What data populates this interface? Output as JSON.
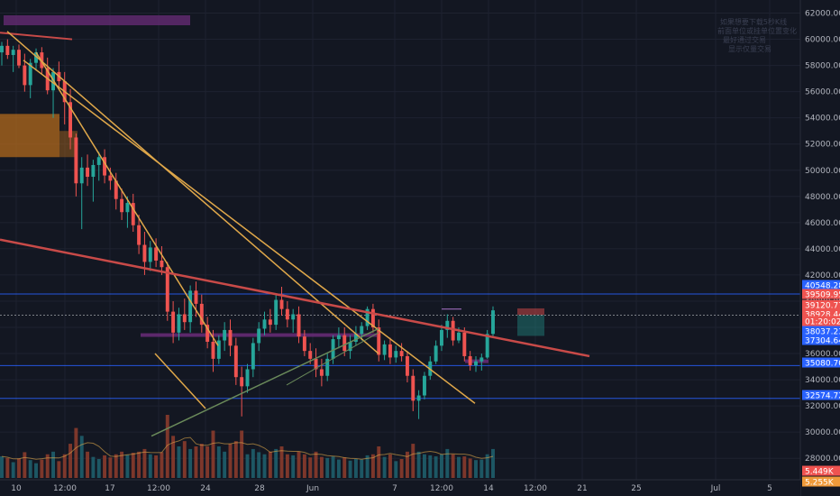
{
  "chart_data": {
    "type": "candlestick",
    "colors": {
      "background": "#131722",
      "grid": "#1e2230",
      "up": "#26a69a",
      "down": "#ef5350",
      "axis_text": "#b2b5be",
      "trendline_yellow": "#e0a84a",
      "trendline_red": "#c84a48",
      "trendline_green": "#6a8a5a",
      "hline_blue": "#2962ff",
      "zone_orange": "#b26a1c",
      "zone_purple": "#6a2c78"
    },
    "y_axis": {
      "min": 26500,
      "max": 63000,
      "ticks": [
        28000,
        30000,
        32000,
        34000,
        36000,
        38000,
        40000,
        42000,
        44000,
        46000,
        48000,
        50000,
        52000,
        54000,
        56000,
        58000,
        60000,
        62000
      ],
      "tick_labels": [
        "28000.00",
        "30000.00",
        "32000.00",
        "34000.00",
        "36000.00",
        "38000.00",
        "40000.00",
        "42000.00",
        "44000.00",
        "46000.00",
        "48000.00",
        "50000.00",
        "52000.00",
        "54000.00",
        "56000.00",
        "58000.00",
        "60000.00",
        "62000.00"
      ]
    },
    "x_axis": {
      "tick_labels": [
        "10",
        "12:00",
        "17",
        "12:00",
        "24",
        "28",
        "Jun",
        "7",
        "12:00",
        "14",
        "12:00",
        "21",
        "25",
        "Jul",
        "5"
      ]
    },
    "horizontal_levels": [
      40548.28,
      38928.44,
      35080.7,
      32574.72
    ],
    "price_labels": [
      {
        "text": "40548.28",
        "color": "#2962ff"
      },
      {
        "text": "39509.95",
        "color": "#ef5350"
      },
      {
        "text": "39120.77",
        "color": "#ef5350"
      },
      {
        "text": "38928.44",
        "color": "#ef5350"
      },
      {
        "text": "01:20:02",
        "color": "#ef5350"
      },
      {
        "text": "38037.23",
        "color": "#2962ff"
      },
      {
        "text": "37304.64",
        "color": "#2962ff"
      },
      {
        "text": "35080.70",
        "color": "#2962ff"
      },
      {
        "text": "32574.72",
        "color": "#2962ff"
      }
    ],
    "volume_labels": [
      {
        "text": "5.449K",
        "color": "#ef5350"
      },
      {
        "text": "5.255K",
        "color": "#ef9a3a"
      }
    ],
    "watermark_lines": [
      "如果想要下载5秒K线",
      "前面单位或挂单位置变化",
      "最好通过交易",
      "显示仅量交易"
    ],
    "ohlc": [
      [
        59000,
        59800,
        58000,
        59500
      ],
      [
        59500,
        60000,
        58500,
        58800
      ],
      [
        58800,
        59500,
        57500,
        59200
      ],
      [
        59200,
        59600,
        57800,
        58000
      ],
      [
        58000,
        58900,
        56000,
        56500
      ],
      [
        56500,
        58500,
        55500,
        58200
      ],
      [
        58200,
        59300,
        57600,
        59000
      ],
      [
        59000,
        59400,
        57300,
        57800
      ],
      [
        57800,
        58600,
        55800,
        56100
      ],
      [
        56100,
        57800,
        54000,
        57500
      ],
      [
        57500,
        58300,
        56200,
        56800
      ],
      [
        56800,
        57500,
        53500,
        55200
      ],
      [
        55200,
        56200,
        51600,
        52500
      ],
      [
        52500,
        52800,
        48000,
        49000
      ],
      [
        49000,
        51000,
        45500,
        50200
      ],
      [
        50200,
        51200,
        48800,
        49500
      ],
      [
        49500,
        50800,
        47600,
        50400
      ],
      [
        50400,
        51400,
        49200,
        51000
      ],
      [
        51000,
        51600,
        49000,
        49600
      ],
      [
        49600,
        50200,
        48500,
        49200
      ],
      [
        49200,
        49800,
        47000,
        47800
      ],
      [
        47800,
        48600,
        46200,
        46800
      ],
      [
        46800,
        48000,
        45600,
        47500
      ],
      [
        47500,
        48200,
        45300,
        45800
      ],
      [
        45800,
        46600,
        43600,
        44300
      ],
      [
        44300,
        45300,
        42000,
        43000
      ],
      [
        43000,
        44600,
        42300,
        44100
      ],
      [
        44100,
        44800,
        42600,
        43100
      ],
      [
        43100,
        44200,
        42000,
        42600
      ],
      [
        42600,
        43000,
        38500,
        39200
      ],
      [
        39200,
        40000,
        36800,
        37600
      ],
      [
        37600,
        39500,
        37000,
        39000
      ],
      [
        39000,
        40200,
        37800,
        38400
      ],
      [
        38400,
        41200,
        37600,
        40800
      ],
      [
        40800,
        41500,
        38800,
        39800
      ],
      [
        39800,
        40500,
        37600,
        38200
      ],
      [
        38200,
        38800,
        36400,
        36900
      ],
      [
        36900,
        37800,
        34600,
        35600
      ],
      [
        35600,
        37400,
        35200,
        37000
      ],
      [
        37000,
        38400,
        36200,
        37800
      ],
      [
        37800,
        38600,
        35800,
        36600
      ],
      [
        36600,
        37200,
        33600,
        34200
      ],
      [
        34200,
        35000,
        31200,
        33500
      ],
      [
        33500,
        35200,
        33000,
        34800
      ],
      [
        34800,
        37200,
        34200,
        36800
      ],
      [
        36800,
        38400,
        36200,
        37900
      ],
      [
        37900,
        39200,
        37400,
        38600
      ],
      [
        38600,
        39400,
        37600,
        38200
      ],
      [
        38200,
        40600,
        37800,
        40100
      ],
      [
        40100,
        41100,
        38900,
        39400
      ],
      [
        39400,
        40000,
        38000,
        38600
      ],
      [
        38600,
        39400,
        37600,
        39000
      ],
      [
        39000,
        39600,
        36800,
        37300
      ],
      [
        37300,
        37800,
        35800,
        36200
      ],
      [
        36200,
        36800,
        35200,
        35600
      ],
      [
        35600,
        36400,
        34200,
        34800
      ],
      [
        34800,
        35600,
        33500,
        34300
      ],
      [
        34300,
        36000,
        33900,
        35600
      ],
      [
        35600,
        37400,
        35200,
        37100
      ],
      [
        37100,
        38000,
        36400,
        37400
      ],
      [
        37400,
        38000,
        35800,
        36200
      ],
      [
        36200,
        37400,
        35600,
        36900
      ],
      [
        36900,
        38100,
        36600,
        37500
      ],
      [
        37500,
        38400,
        37000,
        38100
      ],
      [
        38100,
        39600,
        37800,
        39400
      ],
      [
        39400,
        39800,
        37600,
        38000
      ],
      [
        38000,
        38600,
        35400,
        35900
      ],
      [
        35900,
        37000,
        35500,
        36700
      ],
      [
        36700,
        37200,
        35200,
        35700
      ],
      [
        35700,
        36600,
        35300,
        36200
      ],
      [
        36200,
        36800,
        35400,
        35800
      ],
      [
        35800,
        36200,
        33800,
        34300
      ],
      [
        34300,
        34800,
        31600,
        32400
      ],
      [
        32400,
        33200,
        31000,
        32800
      ],
      [
        32800,
        34600,
        32500,
        34300
      ],
      [
        34300,
        35800,
        34000,
        35400
      ],
      [
        35400,
        37000,
        35200,
        36600
      ],
      [
        36600,
        38200,
        36200,
        37800
      ],
      [
        37800,
        39000,
        37200,
        38500
      ],
      [
        38500,
        38800,
        36600,
        37000
      ],
      [
        37000,
        38000,
        36800,
        37600
      ],
      [
        37600,
        38000,
        35400,
        35800
      ],
      [
        35800,
        36200,
        34700,
        35100
      ],
      [
        35100,
        35800,
        34600,
        35400
      ],
      [
        35400,
        36000,
        34700,
        35700
      ],
      [
        35700,
        37800,
        35600,
        37500
      ],
      [
        37500,
        39600,
        37300,
        39300
      ]
    ],
    "volume": [
      820,
      760,
      600,
      740,
      980,
      680,
      560,
      700,
      900,
      1000,
      640,
      900,
      1300,
      1900,
      1600,
      1000,
      800,
      720,
      860,
      780,
      900,
      1000,
      880,
      960,
      1000,
      1100,
      900,
      860,
      980,
      2400,
      1600,
      1200,
      1400,
      1100,
      1200,
      1300,
      1200,
      1800,
      1200,
      1000,
      1300,
      1400,
      1800,
      900,
      1100,
      980,
      900,
      1000,
      1100,
      1200,
      900,
      860,
      1000,
      900,
      780,
      1000,
      800,
      760,
      820,
      700,
      780,
      660,
      720,
      700,
      860,
      900,
      1200,
      800,
      900,
      640,
      720,
      1000,
      1300,
      1000,
      900,
      860,
      820,
      900,
      1100,
      900,
      800,
      820,
      740,
      680,
      700,
      900,
      1100
    ]
  }
}
